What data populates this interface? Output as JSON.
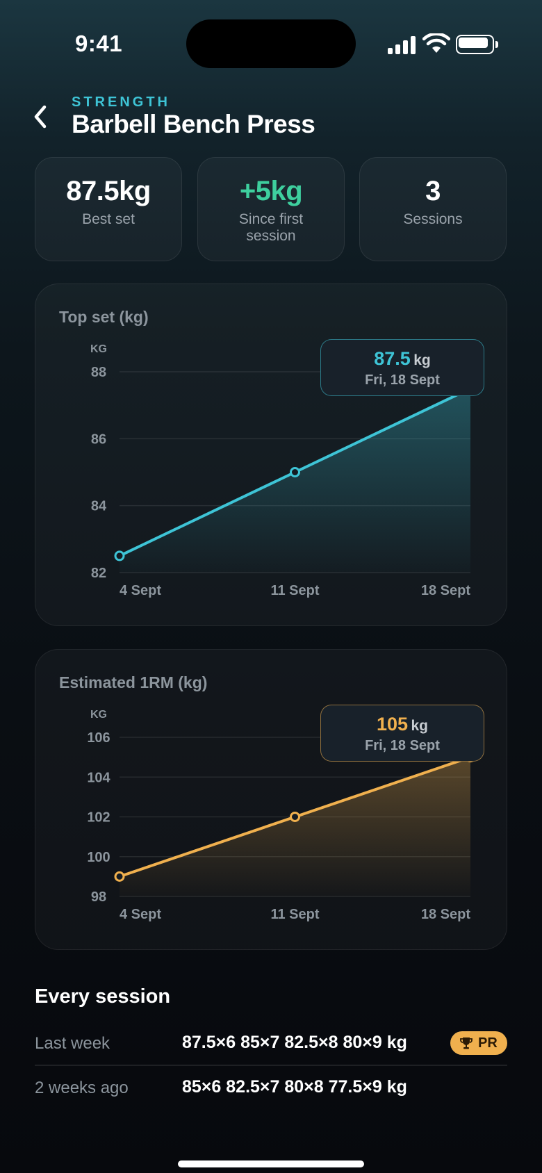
{
  "status": {
    "time": "9:41"
  },
  "header": {
    "eyebrow": "STRENGTH",
    "title": "Barbell Bench Press"
  },
  "stats": [
    {
      "value": "87.5kg",
      "label": "Best set",
      "color": "#ffffff"
    },
    {
      "value": "+5kg",
      "label": "Since first session",
      "color": "#3ecf9e"
    },
    {
      "value": "3",
      "label": "Sessions",
      "color": "#ffffff"
    }
  ],
  "charts": {
    "top_set": {
      "title": "Top set (kg)",
      "unit_label": "KG",
      "tooltip": {
        "value": "87.5",
        "unit": "kg",
        "date": "Fri, 18 Sept"
      },
      "color": "#3ec4d6"
    },
    "one_rm": {
      "title": "Estimated 1RM (kg)",
      "unit_label": "KG",
      "tooltip": {
        "value": "105",
        "unit": "kg",
        "date": "Fri, 18 Sept"
      },
      "color": "#f0b04e"
    }
  },
  "chart_data": [
    {
      "type": "area",
      "title": "Top set (kg)",
      "ylabel": "KG",
      "categories": [
        "4 Sept",
        "11 Sept",
        "18 Sept"
      ],
      "values": [
        82.5,
        85,
        87.5
      ],
      "ylim": [
        82,
        88
      ],
      "yticks": [
        82,
        84,
        86,
        88
      ],
      "grid": true
    },
    {
      "type": "area",
      "title": "Estimated 1RM (kg)",
      "ylabel": "KG",
      "categories": [
        "4 Sept",
        "11 Sept",
        "18 Sept"
      ],
      "values": [
        99,
        102,
        105
      ],
      "ylim": [
        98,
        106
      ],
      "yticks": [
        98,
        100,
        102,
        104,
        106
      ],
      "grid": true
    }
  ],
  "sessions": {
    "title": "Every session",
    "rows": [
      {
        "when": "Last week",
        "sets": "87.5×6 85×7 82.5×8 80×9 kg",
        "badge": "PR"
      },
      {
        "when": "2 weeks ago",
        "sets": "85×6 82.5×7 80×8 77.5×9 kg"
      }
    ]
  }
}
